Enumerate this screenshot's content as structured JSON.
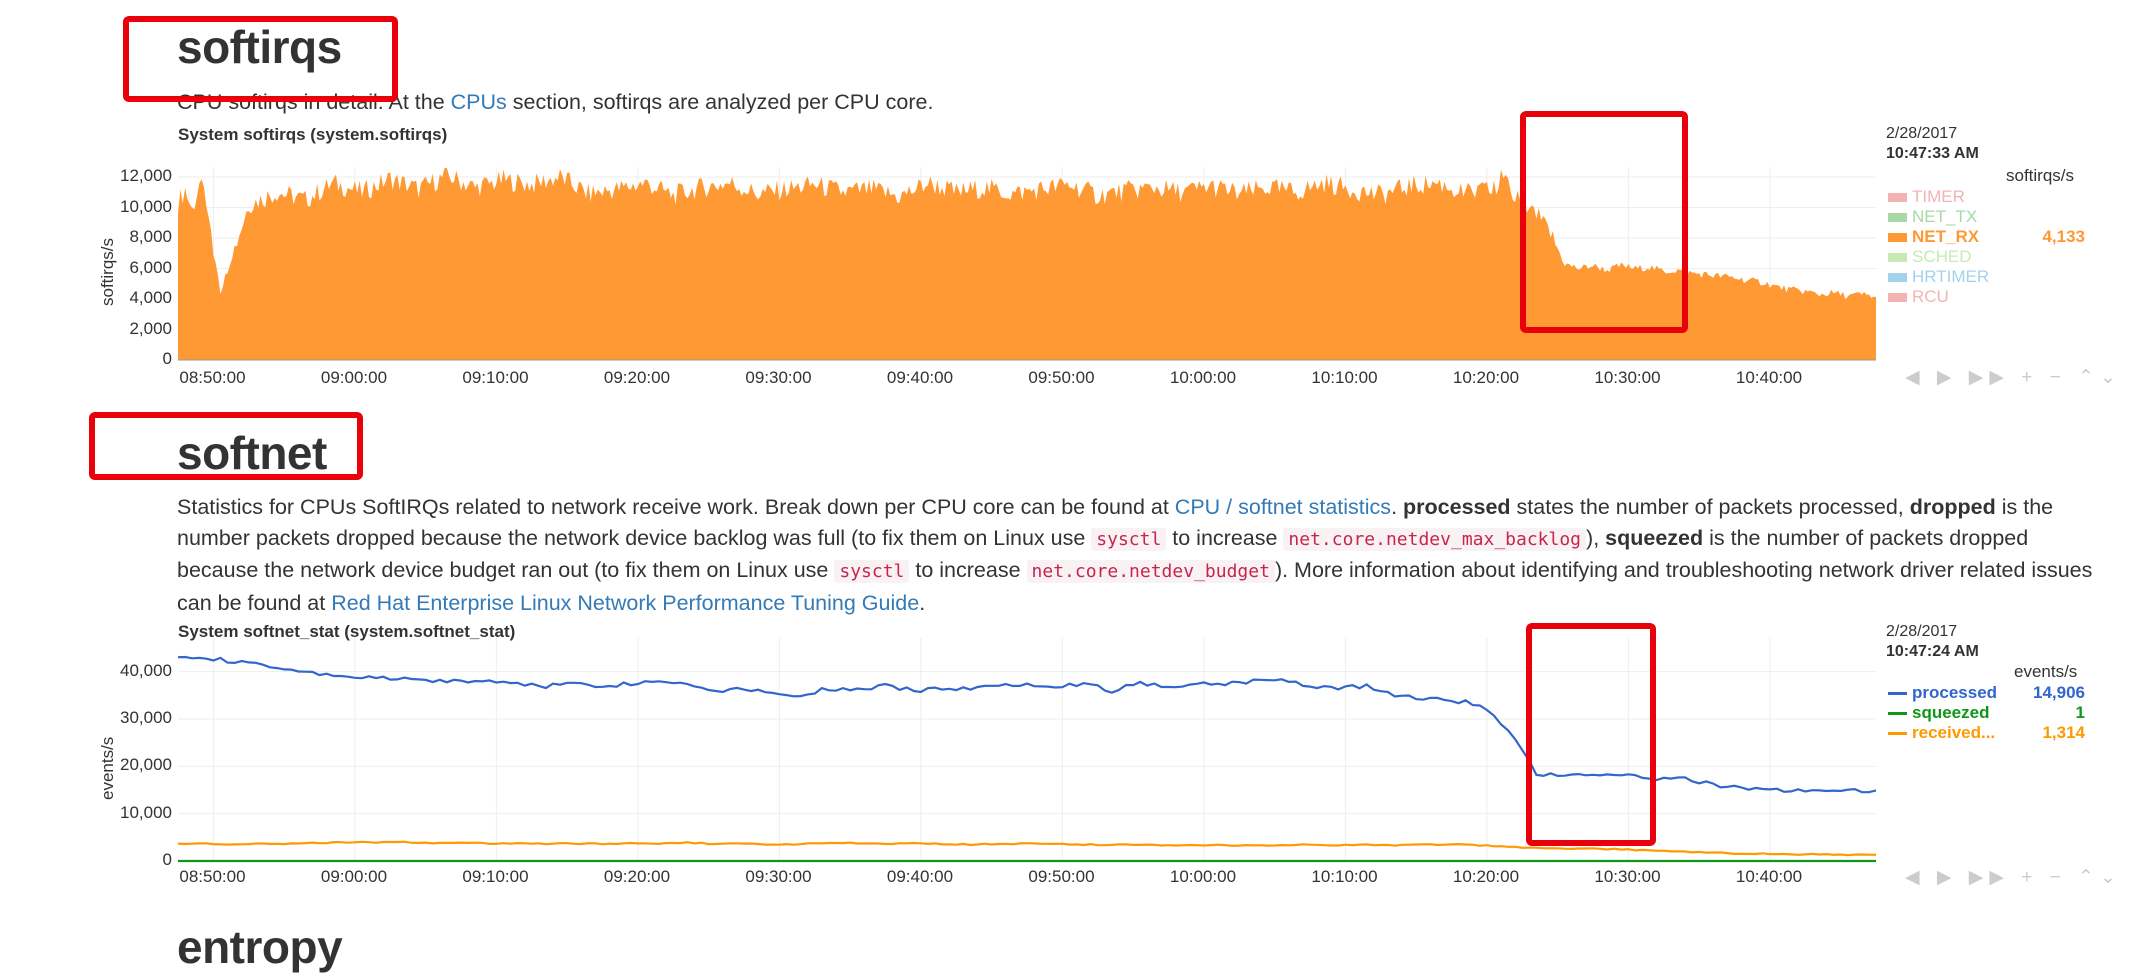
{
  "sections": {
    "softirqs": {
      "heading": "softirqs",
      "desc_obscured": "CPU softirqs in detail.",
      "desc_mid": " At the ",
      "desc_link": "CPUs",
      "desc_end": " section, softirqs are analyzed per CPU core."
    },
    "softnet": {
      "heading": "softnet",
      "p1": "Statistics for CPUs SoftIRQs related to network receive work. Break down per CPU core can be found at ",
      "link1": "CPU / softnet statistics",
      "p2": ". ",
      "b_processed": "processed",
      "p3": " states the number of packets processed, ",
      "b_dropped": "dropped",
      "p4": " is the number packets dropped because the network device backlog was full (to fix them on Linux use ",
      "code1": "sysctl",
      "p5": " to increase ",
      "code2": "net.core.netdev_max_backlog",
      "p6": "), ",
      "b_squeezed": "squeezed",
      "p7": " is the number of packets dropped because the network device budget ran out (to fix them on Linux use ",
      "code3": "sysctl",
      "p8": " to increase ",
      "code4": "net.core.netdev_budget",
      "p9": "). More information about identifying and troubleshooting network driver related issues can be found at ",
      "link2": "Red Hat Enterprise Linux Network Performance Tuning Guide",
      "p10": "."
    },
    "entropy": {
      "heading": "entropy"
    }
  },
  "toolbar": {
    "icons": "◀ ▶ ▶▶ + −   ⌃⌄"
  },
  "chart_data": [
    {
      "type": "area",
      "title": "System softirqs (system.softirqs)",
      "ylabel": "softirqs/s",
      "units": "softirqs/s",
      "ylim": [
        0,
        12000
      ],
      "yticks": [
        "12,000",
        "10,000",
        "8,000",
        "6,000",
        "4,000",
        "2,000",
        "0"
      ],
      "xticks": [
        "08:50:00",
        "09:00:00",
        "09:10:00",
        "09:20:00",
        "09:30:00",
        "09:40:00",
        "09:50:00",
        "10:00:00",
        "10:10:00",
        "10:20:00",
        "10:30:00",
        "10:40:00"
      ],
      "legend_date": "2/28/2017",
      "legend_time": "10:47:33 AM",
      "legend": [
        {
          "name": "TIMER",
          "color": "#f4b3b3",
          "value": ""
        },
        {
          "name": "NET_TX",
          "color": "#a6d9a6",
          "value": ""
        },
        {
          "name": "NET_RX",
          "color": "#ff9933",
          "value": "4,133",
          "active": true
        },
        {
          "name": "SCHED",
          "color": "#c7e9b4",
          "value": ""
        },
        {
          "name": "HRTIMER",
          "color": "#a3d2ec",
          "value": ""
        },
        {
          "name": "RCU",
          "color": "#f4b3b3",
          "value": ""
        }
      ],
      "series": [
        {
          "name": "NET_RX",
          "color": "#ff9933",
          "x_minutes": [
            0,
            0.5,
            1,
            1.5,
            2,
            3,
            5,
            7,
            9,
            11,
            13,
            15,
            17,
            19,
            21,
            23,
            25,
            27,
            29,
            31,
            33,
            35,
            37,
            39,
            41,
            43,
            45,
            47,
            49,
            51,
            53,
            55,
            57,
            59,
            61,
            63,
            65,
            67,
            69,
            71,
            73,
            75,
            77,
            79,
            81,
            83,
            85,
            87,
            89,
            91,
            93,
            93.5,
            94,
            94.5,
            95,
            95.5,
            96,
            97,
            98,
            99,
            100,
            101,
            102,
            103,
            104,
            105,
            106,
            107,
            108,
            109,
            110,
            111,
            112,
            113,
            114,
            115,
            116,
            117,
            118,
            119,
            120
          ],
          "values": [
            10300,
            11200,
            9800,
            11500,
            10600,
            4500,
            10200,
            11000,
            10500,
            11600,
            11000,
            11900,
            11200,
            12100,
            11300,
            11800,
            11500,
            12000,
            10900,
            11200,
            11600,
            10800,
            11300,
            11600,
            10900,
            11200,
            11500,
            11000,
            11200,
            10700,
            11600,
            11000,
            11300,
            10900,
            11200,
            11500,
            10800,
            11100,
            11300,
            11000,
            11400,
            10900,
            11300,
            11000,
            11600,
            11200,
            10800,
            11400,
            11600,
            10900,
            11200,
            12200,
            11300,
            10600,
            10400,
            10000,
            9500,
            8300,
            6300,
            6000,
            6200,
            5900,
            6200,
            6000,
            6100,
            5800,
            5900,
            5700,
            5600,
            5500,
            5400,
            5200,
            5100,
            4800,
            4600,
            4500,
            4300,
            4400,
            4200,
            4300,
            4133
          ]
        }
      ]
    },
    {
      "type": "line",
      "title": "System softnet_stat (system.softnet_stat)",
      "ylabel": "events/s",
      "units": "events/s",
      "ylim": [
        0,
        45000
      ],
      "yticks": [
        "40,000",
        "30,000",
        "20,000",
        "10,000",
        "0"
      ],
      "xticks": [
        "08:50:00",
        "09:00:00",
        "09:10:00",
        "09:20:00",
        "09:30:00",
        "09:40:00",
        "09:50:00",
        "10:00:00",
        "10:10:00",
        "10:20:00",
        "10:30:00",
        "10:40:00"
      ],
      "legend_date": "2/28/2017",
      "legend_time": "10:47:24 AM",
      "legend": [
        {
          "name": "processed",
          "color": "#3366cc",
          "value": "14,906"
        },
        {
          "name": "squeezed",
          "color": "#109618",
          "value": "1"
        },
        {
          "name": "received...",
          "color": "#ff9900",
          "value": "1,314"
        }
      ],
      "x_minutes": [
        0,
        2,
        4,
        6,
        8,
        10,
        12,
        14,
        16,
        18,
        20,
        22,
        24,
        26,
        28,
        30,
        32,
        34,
        36,
        38,
        40,
        42,
        44,
        46,
        48,
        50,
        52,
        54,
        56,
        58,
        60,
        62,
        64,
        66,
        68,
        70,
        72,
        74,
        76,
        78,
        80,
        82,
        84,
        86,
        88,
        90,
        92,
        94,
        96,
        98,
        100,
        102,
        104,
        106,
        108,
        110,
        112,
        114,
        116,
        118,
        120
      ],
      "series": [
        {
          "name": "processed",
          "color": "#3366cc",
          "values": [
            43500,
            43000,
            42000,
            41500,
            40000,
            39500,
            39000,
            38500,
            38500,
            38000,
            38000,
            38000,
            37500,
            37000,
            37500,
            37000,
            37500,
            38000,
            37500,
            36000,
            36500,
            35500,
            35000,
            36500,
            36000,
            37000,
            36000,
            36500,
            36500,
            37000,
            37500,
            37000,
            37500,
            36000,
            37500,
            37000,
            37500,
            37500,
            38000,
            38500,
            37000,
            36500,
            37000,
            35000,
            34500,
            34000,
            33000,
            28000,
            18500,
            18000,
            18500,
            18000,
            17500,
            17500,
            16500,
            15500,
            15000,
            15000,
            15000,
            14800,
            14906
          ]
        },
        {
          "name": "squeezed",
          "color": "#109618",
          "values": [
            1,
            1,
            1,
            1,
            1,
            1,
            1,
            1,
            1,
            1,
            1,
            1,
            1,
            1,
            1,
            1,
            1,
            1,
            1,
            1,
            1,
            1,
            1,
            1,
            1,
            1,
            1,
            1,
            1,
            1,
            1,
            1,
            1,
            1,
            1,
            1,
            1,
            1,
            1,
            1,
            1,
            1,
            1,
            1,
            1,
            1,
            1,
            1,
            1,
            1,
            1,
            1,
            1,
            1,
            1,
            1,
            1,
            1,
            1,
            1,
            1
          ]
        },
        {
          "name": "received...",
          "color": "#ff9900",
          "values": [
            3600,
            3700,
            3500,
            3600,
            3700,
            3800,
            4000,
            3900,
            4000,
            3800,
            3900,
            3700,
            3800,
            3600,
            3700,
            3600,
            3800,
            3700,
            3900,
            3600,
            3700,
            3500,
            3600,
            3700,
            3800,
            3600,
            3700,
            3600,
            3500,
            3600,
            3700,
            3600,
            3500,
            3400,
            3500,
            3300,
            3400,
            3300,
            3400,
            3300,
            3500,
            3300,
            3400,
            3300,
            3400,
            3500,
            3300,
            3000,
            2700,
            2600,
            2600,
            2500,
            2200,
            2000,
            1800,
            1600,
            1500,
            1400,
            1400,
            1300,
            1314
          ]
        }
      ]
    }
  ]
}
